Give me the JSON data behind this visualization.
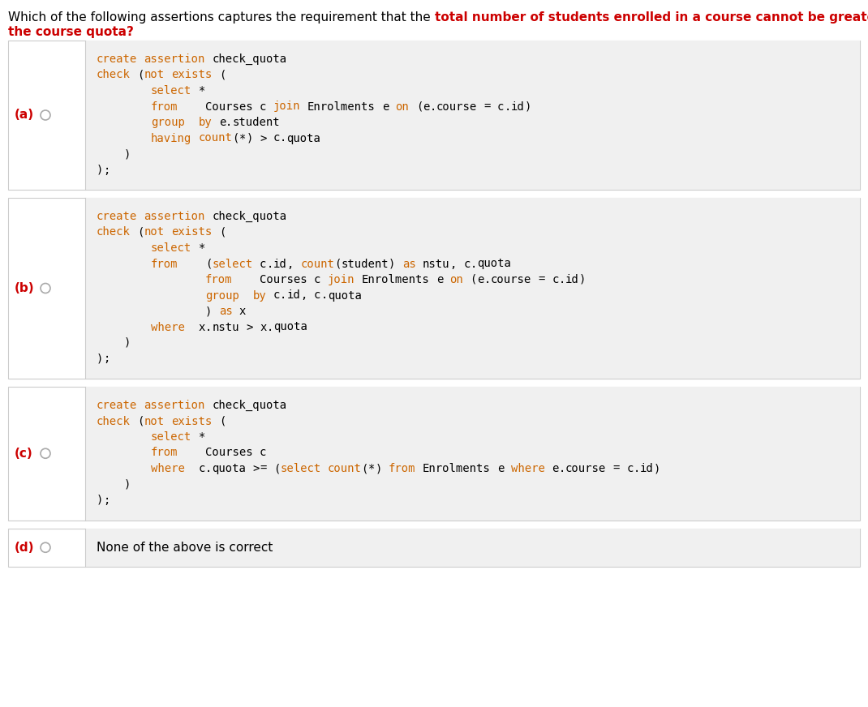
{
  "bg_color": "#ffffff",
  "box_bg_color": "#f0f0f0",
  "box_border_color": "#cccccc",
  "title_normal_color": "#000000",
  "title_bold_color": "#cc0000",
  "label_color": "#cc0000",
  "keyword_color": "#cc6600",
  "normal_color": "#000000",
  "title_parts": [
    {
      "text": "Which of the following assertions captures the requirement that the ",
      "bold": false,
      "color": "#000000"
    },
    {
      "text": "total number of students enrolled in a course cannot be greater than",
      "bold": true,
      "color": "#cc0000"
    }
  ],
  "title_line2": "the course quota?",
  "title_line2_bold": true,
  "title_line2_color": "#cc0000",
  "options": [
    {
      "label": "(a)",
      "plain": false,
      "lines": [
        "create assertion check_quota",
        "check (not exists (",
        "        select *",
        "        from    Courses c join Enrolments e on (e.course = c.id)",
        "        group  by e.student",
        "        having count(*) > c.quota",
        "    )",
        ");"
      ]
    },
    {
      "label": "(b)",
      "plain": false,
      "lines": [
        "create assertion check_quota",
        "check (not exists (",
        "        select *",
        "        from    (select c.id, count(student) as nstu, c.quota",
        "                from    Courses c join Enrolments e on (e.course = c.id)",
        "                group  by c.id, c.quota",
        "                ) as x",
        "        where  x.nstu > x.quota",
        "    )",
        ");"
      ]
    },
    {
      "label": "(c)",
      "plain": false,
      "lines": [
        "create assertion check_quota",
        "check (not exists (",
        "        select *",
        "        from    Courses c",
        "        where  c.quota >= (select count(*) from Enrolments e where e.course = c.id)",
        "    )",
        ");"
      ]
    },
    {
      "label": "(d)",
      "plain": true,
      "lines": [
        "None of the above is correct"
      ]
    }
  ],
  "sql_keywords": [
    "create",
    "assertion",
    "check",
    "not",
    "exists",
    "select",
    "from",
    "group",
    "by",
    "having",
    "where",
    "join",
    "on",
    "count",
    "as"
  ]
}
